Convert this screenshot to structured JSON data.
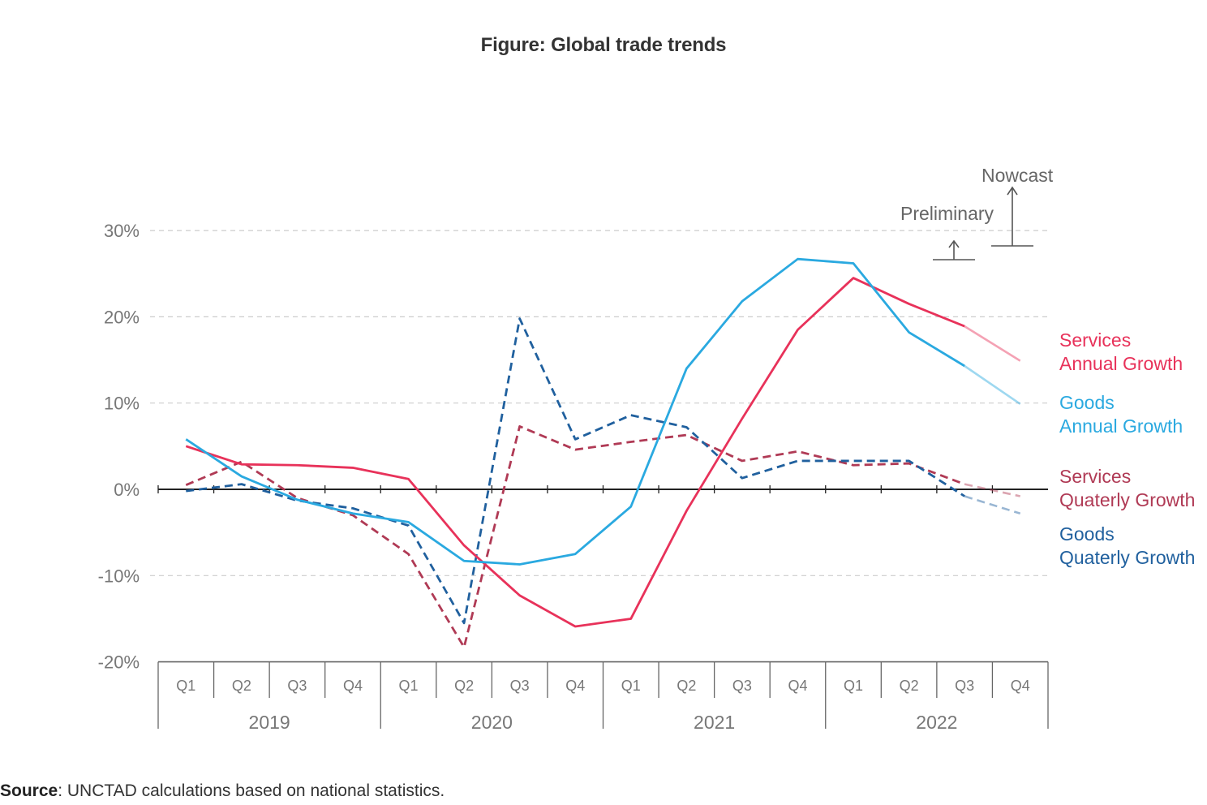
{
  "figure_title": "Figure: Global trade trends",
  "source": {
    "label": "Source",
    "text": ": UNCTAD calculations based on national statistics."
  },
  "colors": {
    "services": "#e8325a",
    "goods": "#2aa9e0",
    "services_quarterly": "#b03a55",
    "goods_quarterly": "#20609e",
    "grid": "#cccccc",
    "axis": "#222222",
    "text": "#777777"
  },
  "annotations": {
    "preliminary": "Preliminary",
    "nowcast": "Nowcast"
  },
  "chart_data": {
    "type": "line",
    "title": "Figure: Global trade trends",
    "xlabel": "",
    "ylabel": "",
    "ylim": [
      -20,
      30
    ],
    "yticks": [
      30,
      20,
      10,
      0,
      -10,
      -20
    ],
    "ytick_labels": [
      "30%",
      "20%",
      "10%",
      "0%",
      "-10%",
      "-20%"
    ],
    "categories": [
      "Q1",
      "Q2",
      "Q3",
      "Q4",
      "Q1",
      "Q2",
      "Q3",
      "Q4",
      "Q1",
      "Q2",
      "Q3",
      "Q4",
      "Q1",
      "Q2",
      "Q3",
      "Q4"
    ],
    "years": [
      "2019",
      "2020",
      "2021",
      "2022"
    ],
    "grid": true,
    "legend_position": "right",
    "series": [
      {
        "name": "Services Annual Growth",
        "label_lines": [
          "Services",
          "Annual Growth"
        ],
        "style": "solid",
        "color": "#e8325a",
        "values": [
          5.0,
          2.9,
          2.8,
          2.5,
          1.2,
          -6.5,
          -12.3,
          -15.9,
          -15.0,
          -2.5,
          8.2,
          18.5,
          24.5,
          21.5,
          18.9,
          14.9
        ]
      },
      {
        "name": "Goods Annual Growth",
        "label_lines": [
          "Goods",
          "Annual Growth"
        ],
        "style": "solid",
        "color": "#2aa9e0",
        "values": [
          5.8,
          1.5,
          -1.2,
          -2.8,
          -3.8,
          -8.3,
          -8.7,
          -7.5,
          -2.0,
          14.0,
          21.8,
          26.7,
          26.2,
          18.2,
          14.3,
          9.9
        ]
      },
      {
        "name": "Services Quaterly Growth",
        "label_lines": [
          "Services",
          "Quaterly Growth"
        ],
        "style": "dashed",
        "color": "#b03a55",
        "values": [
          0.5,
          3.2,
          -1.0,
          -3.0,
          -7.5,
          -18.3,
          7.3,
          4.6,
          5.5,
          6.3,
          3.3,
          4.4,
          2.8,
          3.0,
          0.6,
          -0.8
        ]
      },
      {
        "name": "Goods Quaterly Growth",
        "label_lines": [
          "Goods",
          "Quaterly Growth"
        ],
        "style": "dashed",
        "color": "#20609e",
        "values": [
          -0.2,
          0.6,
          -1.3,
          -2.2,
          -4.2,
          -15.5,
          19.8,
          5.8,
          8.6,
          7.2,
          1.3,
          3.3,
          3.3,
          3.3,
          -0.8,
          -2.8
        ]
      }
    ]
  }
}
